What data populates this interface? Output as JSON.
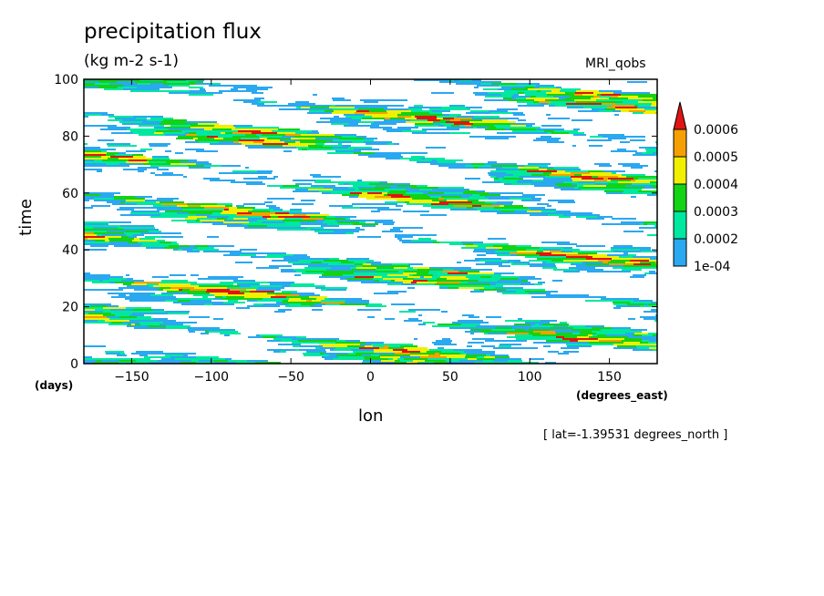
{
  "chart_data": {
    "type": "heatmap",
    "title": "precipitation flux",
    "units": "(kg m-2 s-1)",
    "model_label": "MRI_qobs",
    "xlabel": "lon",
    "xunits": "(degrees_east)",
    "ylabel": "time",
    "yunits": "(days)",
    "annotation": "[ lat=-1.39531 degrees_north ]",
    "xlim": [
      -180,
      180
    ],
    "ylim": [
      0,
      100
    ],
    "x_ticks": [
      -150,
      -100,
      -50,
      0,
      50,
      100,
      150
    ],
    "x_tick_labels": [
      "−150",
      "−100",
      "−50",
      "0",
      "50",
      "100",
      "150"
    ],
    "y_ticks": [
      0,
      20,
      40,
      60,
      80,
      100
    ],
    "y_tick_labels": [
      "0",
      "20",
      "40",
      "60",
      "80",
      "100"
    ],
    "colorbar": {
      "levels": [
        0.0001,
        0.0002,
        0.0003,
        0.0004,
        0.0005,
        0.0006
      ],
      "labels": [
        "1e-04",
        "0.0002",
        "0.0003",
        "0.0004",
        "0.0005",
        "0.0006"
      ],
      "colors": [
        "#2aa8f0",
        "#00e8a0",
        "#14d214",
        "#f0f000",
        "#f5a000",
        "#e01414"
      ],
      "extend": "max"
    }
  }
}
